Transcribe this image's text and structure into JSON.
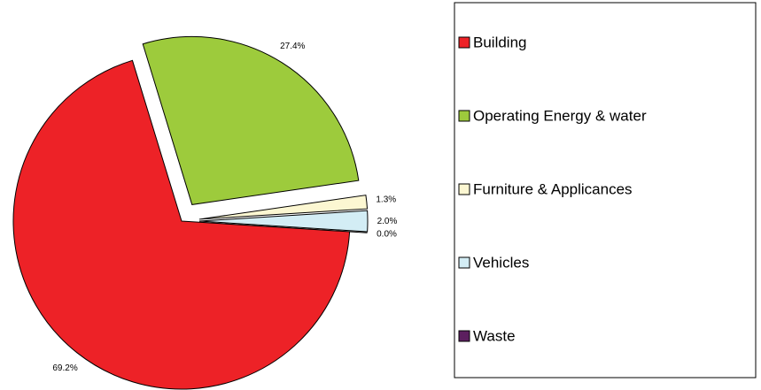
{
  "chart_data": {
    "type": "pie",
    "categories": [
      "Building",
      "Operating Energy & water",
      "Furniture & Applicances",
      "Vehicles",
      "Waste"
    ],
    "values": [
      69.2,
      27.4,
      1.3,
      2.0,
      0.0
    ],
    "value_labels": [
      "69.2%",
      "27.4%",
      "1.3%",
      "2.0%",
      "0.0%"
    ],
    "colors": [
      "#ed2227",
      "#9dcb3c",
      "#fcf7d2",
      "#d3edf5",
      "#5c1f5f"
    ],
    "legend": "right"
  }
}
